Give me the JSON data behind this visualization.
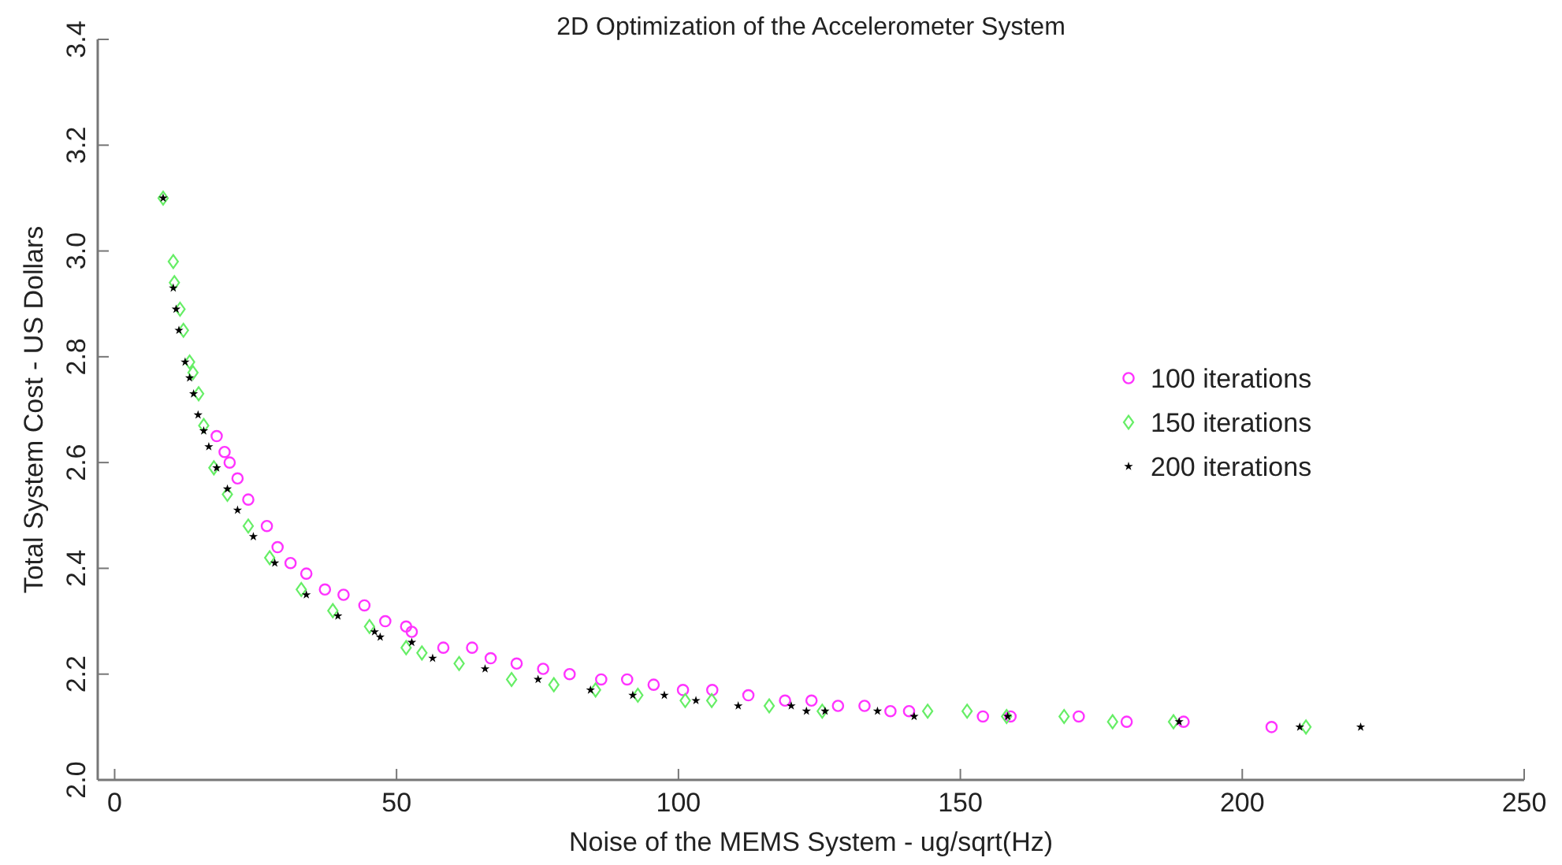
{
  "chart_data": {
    "type": "scatter",
    "title": "2D Optimization of the Accelerometer System",
    "xlabel": "Noise of the MEMS System  - ug/sqrt(Hz)",
    "ylabel": "Total System Cost - US Dollars",
    "xlim": [
      -3,
      250
    ],
    "xticks": [
      0,
      50,
      100,
      150,
      200,
      250
    ],
    "ylim": [
      2.0,
      3.4
    ],
    "yticks": [
      {
        "value": 2.0,
        "label": "2.0"
      },
      {
        "value": 2.2,
        "label": "2.2"
      },
      {
        "value": 2.4,
        "label": "2.4"
      },
      {
        "value": 2.6,
        "label": "2.6"
      },
      {
        "value": 2.8,
        "label": "2.8"
      },
      {
        "value": 3.0,
        "label": "3.0"
      },
      {
        "value": 3.2,
        "label": "3.2"
      },
      {
        "value": 3.4,
        "label": "3.4"
      }
    ],
    "grid": false,
    "legend": "right",
    "series": [
      {
        "name": "100 iterations",
        "color": "#ff33ff",
        "marker": "circle",
        "x": [
          18.1,
          19.5,
          20.4,
          21.8,
          23.7,
          27.0,
          28.9,
          31.2,
          34.0,
          37.3,
          40.6,
          44.3,
          48.0,
          51.7,
          52.7,
          58.3,
          63.4,
          66.7,
          71.3,
          76.0,
          80.7,
          86.3,
          90.9,
          95.6,
          100.8,
          106.0,
          112.4,
          118.9,
          123.6,
          128.3,
          133.0,
          137.6,
          140.9,
          154.0,
          158.9,
          171.0,
          179.5,
          189.6,
          205.2
        ],
        "values": [
          2.65,
          2.62,
          2.6,
          2.57,
          2.53,
          2.48,
          2.44,
          2.41,
          2.39,
          2.36,
          2.35,
          2.33,
          2.3,
          2.29,
          2.28,
          2.25,
          2.25,
          2.23,
          2.22,
          2.21,
          2.2,
          2.19,
          2.19,
          2.18,
          2.17,
          2.17,
          2.16,
          2.15,
          2.15,
          2.14,
          2.14,
          2.13,
          2.13,
          2.12,
          2.12,
          2.12,
          2.11,
          2.11,
          2.1
        ]
      },
      {
        "name": "150 iterations",
        "color": "#66ee66",
        "marker": "diamond",
        "x": [
          8.6,
          10.4,
          10.6,
          11.6,
          12.2,
          13.3,
          13.9,
          14.9,
          15.8,
          17.6,
          20.0,
          23.7,
          27.5,
          33.1,
          38.7,
          45.2,
          51.7,
          54.5,
          61.1,
          70.4,
          77.9,
          85.3,
          92.8,
          101.2,
          105.9,
          116.1,
          125.5,
          144.2,
          151.2,
          158.2,
          168.4,
          177.0,
          187.8,
          211.3
        ],
        "values": [
          3.1,
          2.98,
          2.94,
          2.89,
          2.85,
          2.79,
          2.77,
          2.73,
          2.67,
          2.59,
          2.54,
          2.48,
          2.42,
          2.36,
          2.32,
          2.29,
          2.25,
          2.24,
          2.22,
          2.19,
          2.18,
          2.17,
          2.16,
          2.15,
          2.15,
          2.14,
          2.13,
          2.13,
          2.13,
          2.12,
          2.12,
          2.11,
          2.11,
          2.1
        ]
      },
      {
        "name": "200 iterations",
        "color": "#000000",
        "marker": "star",
        "x": [
          8.6,
          10.4,
          10.9,
          11.4,
          12.5,
          13.3,
          14.0,
          14.8,
          15.8,
          16.7,
          18.1,
          20.0,
          21.8,
          24.6,
          28.4,
          34.0,
          39.6,
          46.1,
          47.1,
          52.7,
          56.4,
          65.7,
          75.1,
          84.4,
          91.9,
          97.5,
          103.1,
          110.6,
          120.0,
          122.7,
          126.0,
          135.3,
          141.8,
          158.4,
          188.8,
          210.2,
          221.0
        ],
        "values": [
          3.1,
          2.93,
          2.89,
          2.85,
          2.79,
          2.76,
          2.73,
          2.69,
          2.66,
          2.63,
          2.59,
          2.55,
          2.51,
          2.46,
          2.41,
          2.35,
          2.31,
          2.28,
          2.27,
          2.26,
          2.23,
          2.21,
          2.19,
          2.17,
          2.16,
          2.16,
          2.15,
          2.14,
          2.14,
          2.13,
          2.13,
          2.13,
          2.12,
          2.12,
          2.11,
          2.1,
          2.1
        ]
      }
    ]
  }
}
